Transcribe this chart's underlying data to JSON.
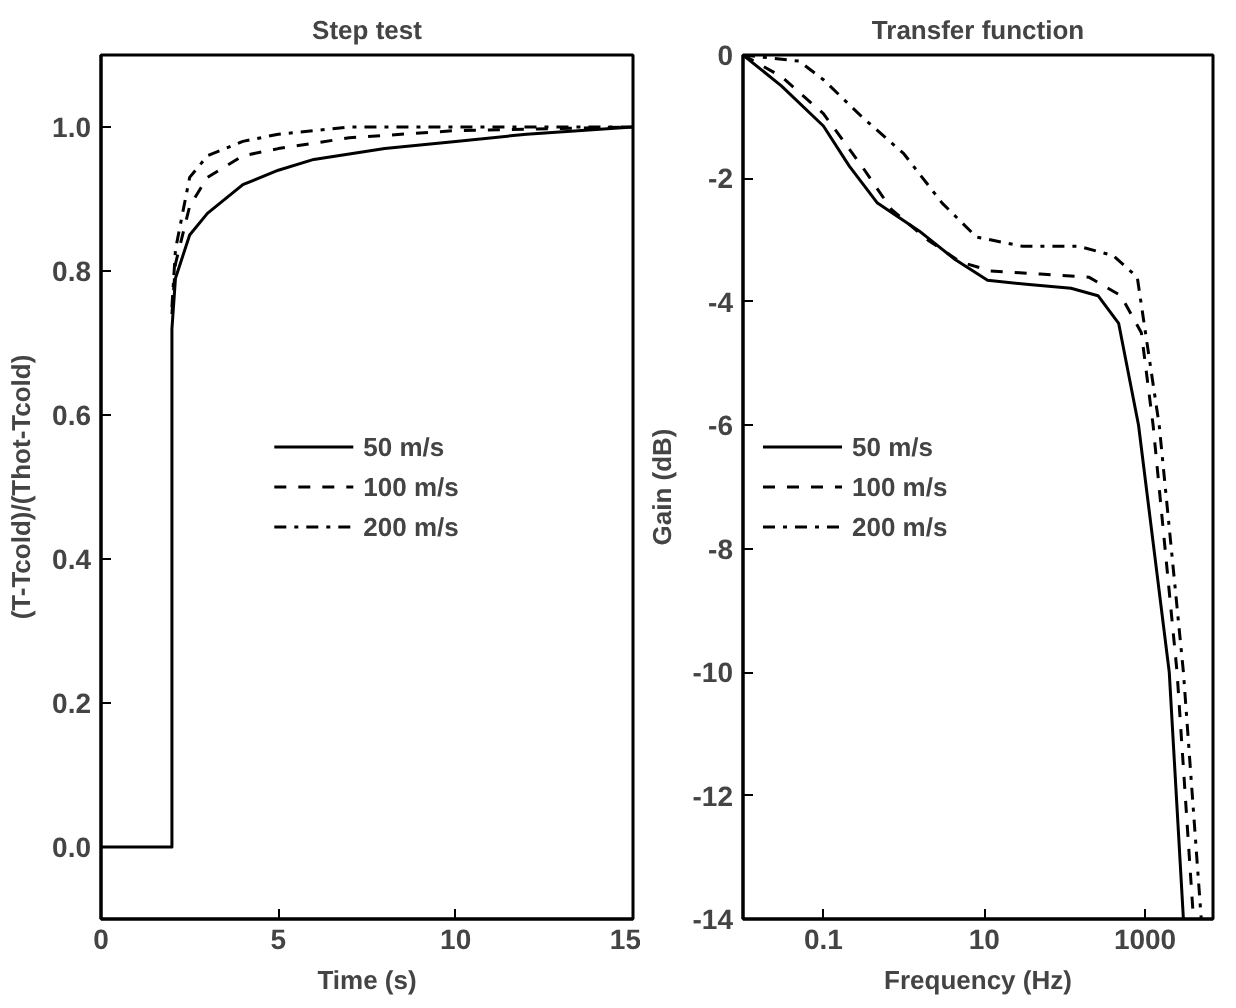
{
  "chart_data": [
    {
      "type": "line",
      "title": "Step test",
      "xlabel": "Time (s)",
      "ylabel": "(T-Tcold)/(Thot-Tcold)",
      "xlim": [
        0,
        15
      ],
      "ylim": [
        -0.1,
        1.1
      ],
      "xticks": [
        0,
        5,
        10,
        15
      ],
      "yticks": [
        {
          "value": 0,
          "label": "0.0"
        },
        {
          "value": 0.2,
          "label": "0.2"
        },
        {
          "value": 0.4,
          "label": "0.4"
        },
        {
          "value": 0.6,
          "label": "0.6"
        },
        {
          "value": 0.8,
          "label": "0.8"
        },
        {
          "value": 1,
          "label": "1.0"
        }
      ],
      "legend": "center",
      "grid": false,
      "series": [
        {
          "name": "50 m/s",
          "color": "#000000",
          "line_style": "solid",
          "x": [
            0,
            2,
            2,
            2.1,
            2.5,
            3,
            4,
            5,
            6,
            8,
            10,
            12,
            15
          ],
          "values": [
            0,
            0,
            0.72,
            0.79,
            0.85,
            0.88,
            0.92,
            0.94,
            0.955,
            0.97,
            0.98,
            0.99,
            1.0
          ]
        },
        {
          "name": "100 m/s",
          "color": "#000000",
          "line_style": "dashed",
          "x": [
            2,
            2.1,
            2.5,
            3,
            4,
            5,
            7,
            10,
            15
          ],
          "values": [
            0.74,
            0.81,
            0.89,
            0.93,
            0.96,
            0.97,
            0.985,
            0.995,
            1.0
          ]
        },
        {
          "name": "200 m/s",
          "color": "#000000",
          "line_style": "dashdot",
          "x": [
            2,
            2.1,
            2.5,
            3,
            4,
            5,
            7,
            8,
            10,
            15
          ],
          "values": [
            0.75,
            0.83,
            0.93,
            0.96,
            0.98,
            0.99,
            1.0,
            1.0,
            1.0,
            1.0
          ]
        }
      ]
    },
    {
      "type": "line",
      "title": "Transfer function",
      "xlabel": "Frequency (Hz)",
      "ylabel": "Gain (dB)",
      "log": "x",
      "xlim": [
        0.01,
        7000
      ],
      "ylim": [
        -14,
        0
      ],
      "xticks": [
        0.1,
        10,
        1000
      ],
      "yticks": [
        0,
        -2,
        -4,
        -6,
        -8,
        -10,
        -12,
        -14
      ],
      "legend": "left",
      "grid": false,
      "series": [
        {
          "name": "50 m/s",
          "color": "#000000",
          "line_style": "solid",
          "x": [
            0.01,
            0.03,
            0.1,
            0.21,
            0.47,
            1.55,
            4.2,
            11,
            36,
            120,
            260,
            470,
            830,
            2000,
            3000
          ],
          "values": [
            0,
            -0.5,
            -1.15,
            -1.8,
            -2.4,
            -2.85,
            -3.3,
            -3.65,
            -3.72,
            -3.78,
            -3.9,
            -4.35,
            -6,
            -10,
            -14
          ]
        },
        {
          "name": "100 m/s",
          "color": "#000000",
          "line_style": "dashed",
          "x": [
            0.01,
            0.03,
            0.1,
            0.3,
            0.7,
            2,
            5,
            12,
            50,
            200,
            500,
            900,
            1260,
            2500,
            4000
          ],
          "values": [
            0,
            -0.35,
            -0.95,
            -1.8,
            -2.5,
            -3.0,
            -3.35,
            -3.5,
            -3.55,
            -3.6,
            -3.9,
            -4.5,
            -6,
            -10,
            -14
          ]
        },
        {
          "name": "200 m/s",
          "color": "#000000",
          "line_style": "dashdot",
          "x": [
            0.01,
            0.05,
            0.1,
            0.3,
            1,
            3,
            8,
            30,
            150,
            400,
            800,
            1500,
            3000,
            5000
          ],
          "values": [
            0,
            -0.1,
            -0.4,
            -1.0,
            -1.6,
            -2.4,
            -2.95,
            -3.1,
            -3.1,
            -3.25,
            -3.6,
            -6,
            -10,
            -14
          ]
        }
      ]
    }
  ]
}
